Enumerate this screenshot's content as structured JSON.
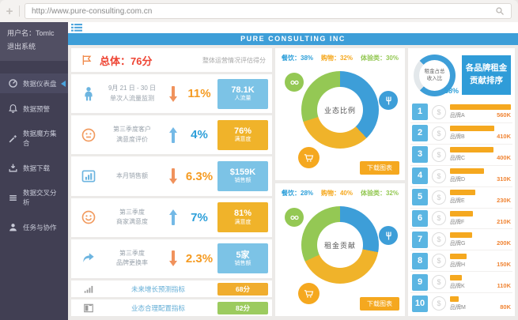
{
  "browser": {
    "url": "http://www.pure-consulting.com.cn"
  },
  "sidebar": {
    "username": "用户名：Tomlc",
    "logout": "退出系统",
    "items": [
      {
        "icon": "gauge-icon",
        "label": "数据仪表盘",
        "active": true
      },
      {
        "icon": "bell-icon",
        "label": "数据预警",
        "active": false
      },
      {
        "icon": "wand-icon",
        "label": "数据魔方集合",
        "active": false
      },
      {
        "icon": "download-icon",
        "label": "数据下载",
        "active": false
      },
      {
        "icon": "layers-icon",
        "label": "数据交叉分析",
        "active": false
      },
      {
        "icon": "user-icon",
        "label": "任务与协作",
        "active": false
      }
    ]
  },
  "header": {
    "title": "PURE CONSULTING INC"
  },
  "overview": {
    "title": "总体：76分",
    "subtitle": "整体运营情况评估得分",
    "metrics": [
      {
        "icon": "person-icon",
        "label1": "9月 21 日 - 30 日",
        "label2": "单次人流量监测",
        "direction": "down",
        "percent": "11%",
        "box_value": "78.1K",
        "box_label": "人流量",
        "box_color": "blue"
      },
      {
        "icon": "neutral-face-icon",
        "label1": "第三季度客户",
        "label2": "满意度评价",
        "direction": "up",
        "percent": "4%",
        "box_value": "76%",
        "box_label": "满意度",
        "box_color": "yellow"
      },
      {
        "icon": "bar-chart-icon",
        "label1": "本月销售额",
        "label2": "",
        "direction": "down",
        "percent": "6.3%",
        "box_value": "$159K",
        "box_label": "销售额",
        "box_color": "blue"
      },
      {
        "icon": "smiley-icon",
        "label1": "第三季度",
        "label2": "商家满意度",
        "direction": "up",
        "percent": "7%",
        "box_value": "81%",
        "box_label": "满意度",
        "box_color": "yellow"
      },
      {
        "icon": "share-icon",
        "label1": "第三季度",
        "label2": "品牌更换率",
        "direction": "down",
        "percent": "2.3%",
        "box_value": "5家",
        "box_label": "销售额",
        "box_color": "blue"
      }
    ],
    "footers": [
      {
        "icon": "signal-icon",
        "label": "未来增长预测指标",
        "score": "68分",
        "color": "orange"
      },
      {
        "icon": "columns-icon",
        "label": "业态合理配置指标",
        "score": "82分",
        "color": "green"
      }
    ]
  },
  "donut_cards": [
    {
      "legend": [
        "餐饮：38%",
        "购物：32%",
        "体验类：30%"
      ],
      "center": "业态比例",
      "download": "下载图表",
      "chart": {
        "type": "pie",
        "segments": [
          {
            "name": "餐饮",
            "pct": 38,
            "color": "#3d9ed8"
          },
          {
            "name": "购物",
            "pct": 32,
            "color": "#f0b32a"
          },
          {
            "name": "体验类",
            "pct": 30,
            "color": "#94c854"
          }
        ]
      }
    },
    {
      "legend": [
        "餐饮：28%",
        "购物：40%",
        "体验类：32%"
      ],
      "center": "租金贡献",
      "download": "下载图表",
      "chart": {
        "type": "pie",
        "segments": [
          {
            "name": "餐饮",
            "pct": 28,
            "color": "#3d9ed8"
          },
          {
            "name": "购物",
            "pct": 40,
            "color": "#f0b32a"
          },
          {
            "name": "体验类",
            "pct": 32,
            "color": "#94c854"
          }
        ]
      }
    }
  ],
  "rental": {
    "gauge": {
      "label1": "租金占总",
      "label2": "收入比",
      "percent": "58%",
      "arc_pct": 75,
      "color": "#3d9ed8"
    },
    "title1": "各品牌租金",
    "title2": "贡献排序",
    "rows": [
      {
        "rank": "1",
        "brand": "品牌A",
        "value": "560K",
        "value_k": 560
      },
      {
        "rank": "2",
        "brand": "品牌B",
        "value": "410K",
        "value_k": 410
      },
      {
        "rank": "3",
        "brand": "品牌C",
        "value": "400K",
        "value_k": 400
      },
      {
        "rank": "4",
        "brand": "品牌D",
        "value": "310K",
        "value_k": 310
      },
      {
        "rank": "5",
        "brand": "品牌E",
        "value": "230K",
        "value_k": 230
      },
      {
        "rank": "6",
        "brand": "品牌F",
        "value": "210K",
        "value_k": 210
      },
      {
        "rank": "7",
        "brand": "品牌G",
        "value": "200K",
        "value_k": 200
      },
      {
        "rank": "8",
        "brand": "品牌H",
        "value": "150K",
        "value_k": 150
      },
      {
        "rank": "9",
        "brand": "品牌K",
        "value": "110K",
        "value_k": 110
      },
      {
        "rank": "10",
        "brand": "品牌M",
        "value": "80K",
        "value_k": 80
      }
    ]
  }
}
